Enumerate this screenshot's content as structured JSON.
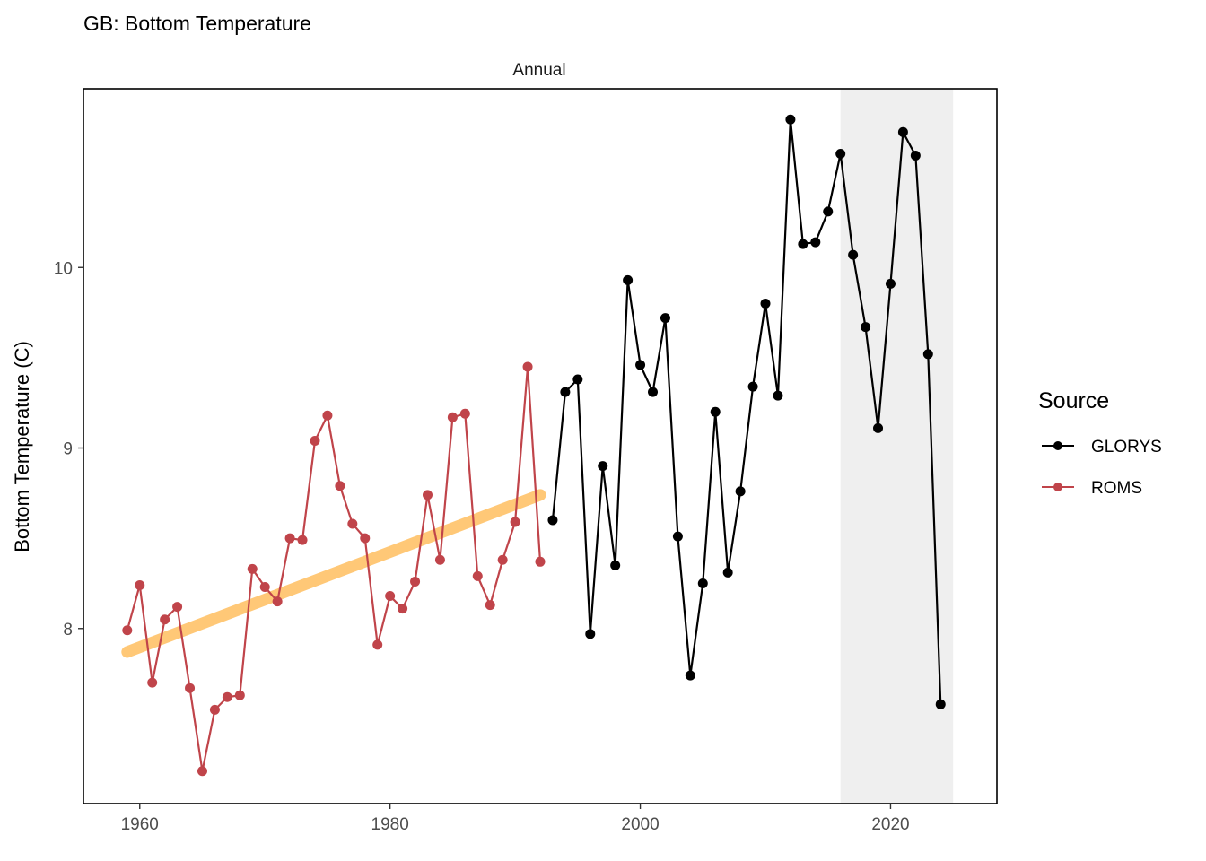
{
  "title": "GB: Bottom Temperature",
  "facet_label": "Annual",
  "chart_data": {
    "type": "line",
    "title": "GB: Bottom Temperature",
    "xlabel": "",
    "ylabel": "Bottom Temperature (C)",
    "xlim": [
      1955.5,
      2028.5
    ],
    "ylim": [
      7.03,
      10.99
    ],
    "x_ticks": [
      1960,
      1980,
      2000,
      2020
    ],
    "y_ticks": [
      8,
      9,
      10
    ],
    "grid": false,
    "shaded_period": [
      2016,
      2025
    ],
    "shade_color": "#efefef",
    "series": [
      {
        "name": "ROMS",
        "color": "#c0444a",
        "points": [
          [
            1959,
            7.99
          ],
          [
            1960,
            8.24
          ],
          [
            1961,
            7.7
          ],
          [
            1962,
            8.05
          ],
          [
            1963,
            8.12
          ],
          [
            1964,
            7.67
          ],
          [
            1965,
            7.21
          ],
          [
            1966,
            7.55
          ],
          [
            1967,
            7.62
          ],
          [
            1968,
            7.63
          ],
          [
            1969,
            8.33
          ],
          [
            1970,
            8.23
          ],
          [
            1971,
            8.15
          ],
          [
            1972,
            8.5
          ],
          [
            1973,
            8.49
          ],
          [
            1974,
            9.04
          ],
          [
            1975,
            9.18
          ],
          [
            1976,
            8.79
          ],
          [
            1977,
            8.58
          ],
          [
            1978,
            8.5
          ],
          [
            1979,
            7.91
          ],
          [
            1980,
            8.18
          ],
          [
            1981,
            8.11
          ],
          [
            1982,
            8.26
          ],
          [
            1983,
            8.74
          ],
          [
            1984,
            8.38
          ],
          [
            1985,
            9.17
          ],
          [
            1986,
            9.19
          ],
          [
            1987,
            8.29
          ],
          [
            1988,
            8.13
          ],
          [
            1989,
            8.38
          ],
          [
            1990,
            8.59
          ],
          [
            1991,
            9.45
          ],
          [
            1992,
            8.37
          ]
        ]
      },
      {
        "name": "GLORYS",
        "color": "#000000",
        "points": [
          [
            1993,
            8.6
          ],
          [
            1994,
            9.31
          ],
          [
            1995,
            9.38
          ],
          [
            1996,
            7.97
          ],
          [
            1997,
            8.9
          ],
          [
            1998,
            8.35
          ],
          [
            1999,
            9.93
          ],
          [
            2000,
            9.46
          ],
          [
            2001,
            9.31
          ],
          [
            2002,
            9.72
          ],
          [
            2003,
            8.51
          ],
          [
            2004,
            7.74
          ],
          [
            2005,
            8.25
          ],
          [
            2006,
            9.2
          ],
          [
            2007,
            8.31
          ],
          [
            2008,
            8.76
          ],
          [
            2009,
            9.34
          ],
          [
            2010,
            9.8
          ],
          [
            2011,
            9.29
          ],
          [
            2012,
            10.82
          ],
          [
            2013,
            10.13
          ],
          [
            2014,
            10.14
          ],
          [
            2015,
            10.31
          ],
          [
            2016,
            10.63
          ],
          [
            2017,
            10.07
          ],
          [
            2018,
            9.67
          ],
          [
            2019,
            9.11
          ],
          [
            2020,
            9.91
          ],
          [
            2021,
            10.75
          ],
          [
            2022,
            10.62
          ],
          [
            2023,
            9.52
          ],
          [
            2024,
            7.58
          ]
        ]
      }
    ],
    "trend_line": {
      "color": "#ffc877",
      "points": [
        [
          1959,
          7.87
        ],
        [
          1992,
          8.74
        ]
      ]
    },
    "legend": {
      "title": "Source",
      "position": "right",
      "entries": [
        {
          "label": "GLORYS",
          "color": "#000000"
        },
        {
          "label": "ROMS",
          "color": "#c0444a"
        }
      ]
    }
  }
}
